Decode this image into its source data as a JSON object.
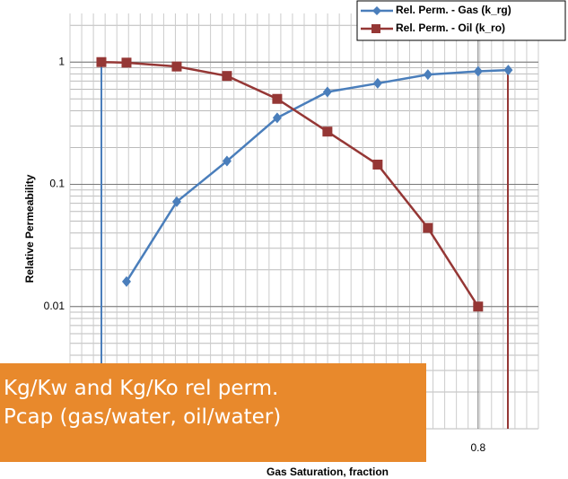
{
  "chart_data": {
    "type": "line",
    "y_axis_label": "Relative Permeability",
    "x_axis_label": "Gas Saturation, fraction",
    "log_y": true,
    "grid": true,
    "xlim": [
      -0.0125,
      0.92
    ],
    "xticks": [
      0.8
    ],
    "ylim": [
      0.001,
      2.5
    ],
    "yticks": [
      1,
      0.1,
      0.01
    ],
    "legend": "top-right",
    "series": [
      {
        "name": "Rel. Perm. - Gas (k_rg)",
        "color": "#4a7ebb",
        "marker": "diamond",
        "x": [
          0.1,
          0.2,
          0.3,
          0.4,
          0.5,
          0.6,
          0.7,
          0.8,
          0.86
        ],
        "values": [
          0.016,
          0.072,
          0.155,
          0.35,
          0.57,
          0.67,
          0.79,
          0.84,
          0.86
        ]
      },
      {
        "name": "Rel. Perm. - Oil (k_ro)",
        "color": "#953735",
        "marker": "square",
        "x": [
          0.05,
          0.1,
          0.2,
          0.3,
          0.4,
          0.5,
          0.6,
          0.7,
          0.8
        ],
        "values": [
          1.0,
          0.99,
          0.92,
          0.77,
          0.5,
          0.27,
          0.145,
          0.044,
          0.01
        ]
      }
    ]
  },
  "overlay": {
    "lines": [
      "Kg/Kw and Kg/Ko rel perm.",
      "Pcap (gas/water, oil/water)"
    ]
  }
}
